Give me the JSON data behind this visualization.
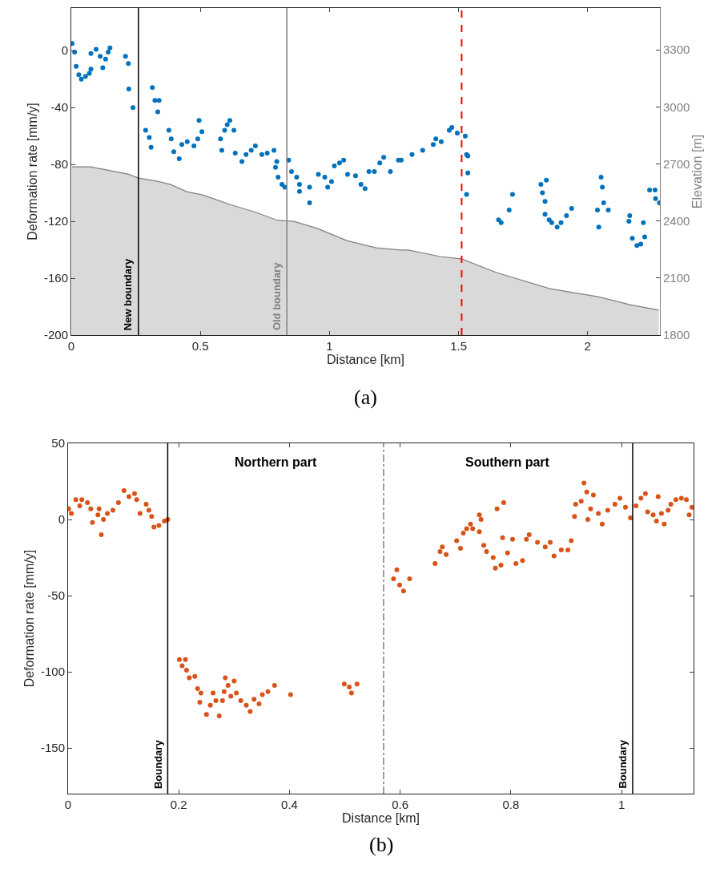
{
  "chart_data": [
    {
      "type": "scatter",
      "xlabel": "Distance [km]",
      "ylabel": "Deformation rate [mm/y]",
      "y2label": "Elevation [m]",
      "xlim": [
        0,
        2.28
      ],
      "xticks": [
        0,
        0.5,
        1,
        1.5,
        2
      ],
      "ylim": [
        -200,
        30
      ],
      "yticks": [
        -200,
        -160,
        -120,
        -80,
        -40,
        0
      ],
      "y2lim": [
        1800,
        3520
      ],
      "y2ticks": [
        1800,
        2100,
        2400,
        2700,
        3000,
        3300
      ],
      "series": [
        {
          "type": "area",
          "axis": "y2",
          "color": "#d9d9d9",
          "x": [
            0.003,
            0.074,
            0.22,
            0.26,
            0.335,
            0.385,
            0.447,
            0.509,
            0.614,
            0.716,
            0.8,
            0.862,
            0.955,
            1.067,
            1.181,
            1.274,
            1.305,
            1.429,
            1.513,
            1.647,
            1.854,
            2.04,
            2.164,
            2.276
          ],
          "values": [
            2685,
            2685,
            2647,
            2626,
            2609,
            2592,
            2554,
            2537,
            2487,
            2445,
            2403,
            2398,
            2360,
            2297,
            2259,
            2247,
            2247,
            2213,
            2200,
            2129,
            2044,
            2002,
            1960,
            1931
          ]
        },
        {
          "marker": "circle",
          "color": "#0072bd",
          "x": [
            0.003,
            0.013,
            0.019,
            0.029,
            0.039,
            0.055,
            0.07,
            0.076,
            0.076,
            0.096,
            0.112,
            0.122,
            0.133,
            0.143,
            0.15,
            0.21,
            0.221,
            0.223,
            0.239,
            0.288,
            0.302,
            0.309,
            0.314,
            0.324,
            0.335,
            0.34,
            0.378,
            0.387,
            0.397,
            0.418,
            0.428,
            0.449,
            0.475,
            0.49,
            0.495,
            0.506,
            0.578,
            0.583,
            0.594,
            0.604,
            0.614,
            0.63,
            0.635,
            0.661,
            0.677,
            0.697,
            0.713,
            0.738,
            0.759,
            0.785,
            0.796,
            0.791,
            0.801,
            0.816,
            0.827,
            0.842,
            0.853,
            0.873,
            0.884,
            0.884,
            0.923,
            0.923,
            0.957,
            0.982,
            0.993,
            1.008,
            1.019,
            1.039,
            1.055,
            1.07,
            1.101,
            1.122,
            1.138,
            1.153,
            1.174,
            1.195,
            1.21,
            1.236,
            1.267,
            1.278,
            1.32,
            1.361,
            1.402,
            1.412,
            1.433,
            1.464,
            1.474,
            1.495,
            1.526,
            1.531,
            1.536,
            1.536,
            1.531,
            1.655,
            1.665,
            1.696,
            1.709,
            1.819,
            1.825,
            1.835,
            1.84,
            1.835,
            1.851,
            1.861,
            1.882,
            1.897,
            1.918,
            1.938,
            2.038,
            2.043,
            2.052,
            2.057,
            2.062,
            2.08,
            2.16,
            2.163,
            2.173,
            2.191,
            2.206,
            2.216,
            2.221,
            2.24,
            2.261,
            2.263,
            2.278
          ],
          "values": [
            5,
            -1,
            -11,
            -17,
            -20,
            -18,
            -16,
            -13,
            -2,
            1,
            -4,
            -12,
            -6,
            -1,
            2,
            -4,
            -9,
            -27,
            -40,
            -56,
            -61,
            -68,
            -26,
            -35,
            -43,
            -35,
            -56,
            -62,
            -71,
            -76,
            -66,
            -64,
            -67,
            -62,
            -49,
            -57,
            -62,
            -70,
            -56,
            -52,
            -49,
            -56,
            -72,
            -78,
            -73,
            -70,
            -67,
            -73,
            -72,
            -70,
            -78,
            -82,
            -89,
            -94,
            -96,
            -77,
            -85,
            -89,
            -94,
            -99,
            -96,
            -107,
            -87,
            -89,
            -96,
            -92,
            -81,
            -79,
            -77,
            -87,
            -88,
            -94,
            -97,
            -85,
            -85,
            -79,
            -75,
            -85,
            -77,
            -77,
            -73,
            -70,
            -66,
            -62,
            -64,
            -56,
            -54,
            -58,
            -60,
            -73,
            -74,
            -86,
            -101,
            -119,
            -121,
            -112,
            -101,
            -94,
            -100,
            -106,
            -91,
            -115,
            -119,
            -121,
            -124,
            -121,
            -116,
            -111,
            -112,
            -124,
            -89,
            -96,
            -107,
            -112,
            -120,
            -116,
            -132,
            -137,
            -136,
            -121,
            -131,
            -98,
            -98,
            -104,
            -107
          ]
        }
      ],
      "ref_lines": [
        {
          "axis": "x",
          "value": 0.26,
          "label": "New boundary",
          "color": "#000000",
          "line_style": "solid"
        },
        {
          "axis": "x",
          "value": 0.835,
          "label": "Old boundary",
          "color": "#808080",
          "line_style": "solid"
        },
        {
          "axis": "x",
          "value": 1.512,
          "label": null,
          "color": "#ff0000",
          "line_style": "dashed"
        }
      ],
      "annotations": [
        "(a)"
      ]
    },
    {
      "type": "scatter",
      "xlabel": "Distance [km]",
      "ylabel": "Deformation rate [mm/y]",
      "xlim": [
        0,
        1.13
      ],
      "xticks": [
        0,
        0.2,
        0.4,
        0.6,
        0.8,
        1
      ],
      "ylim": [
        -180,
        50
      ],
      "yticks": [
        -150,
        -100,
        -50,
        0,
        50
      ],
      "series": [
        {
          "marker": "circle",
          "color": "#d95319",
          "x": [
            0.001,
            0.006,
            0.014,
            0.021,
            0.025,
            0.035,
            0.041,
            0.044,
            0.054,
            0.056,
            0.06,
            0.064,
            0.071,
            0.081,
            0.091,
            0.101,
            0.11,
            0.12,
            0.124,
            0.13,
            0.141,
            0.146,
            0.151,
            0.155,
            0.164,
            0.174,
            0.18,
            0.201,
            0.212,
            0.206,
            0.214,
            0.219,
            0.229,
            0.234,
            0.24,
            0.238,
            0.25,
            0.257,
            0.262,
            0.267,
            0.273,
            0.279,
            0.282,
            0.284,
            0.289,
            0.294,
            0.3,
            0.304,
            0.312,
            0.322,
            0.329,
            0.336,
            0.345,
            0.351,
            0.361,
            0.373,
            0.402,
            0.499,
            0.508,
            0.512,
            0.522,
            0.588,
            0.594,
            0.599,
            0.606,
            0.617,
            0.663,
            0.672,
            0.676,
            0.683,
            0.702,
            0.709,
            0.714,
            0.72,
            0.727,
            0.731,
            0.743,
            0.746,
            0.743,
            0.751,
            0.756,
            0.768,
            0.772,
            0.775,
            0.782,
            0.785,
            0.787,
            0.794,
            0.803,
            0.809,
            0.821,
            0.828,
            0.833,
            0.848,
            0.862,
            0.871,
            0.878,
            0.891,
            0.903,
            0.909,
            0.915,
            0.917,
            0.927,
            0.932,
            0.937,
            0.939,
            0.944,
            0.949,
            0.958,
            0.965,
            0.975,
            0.988,
            0.997,
            1.007,
            1.016,
            1.026,
            1.035,
            1.043,
            1.047,
            1.057,
            1.063,
            1.066,
            1.072,
            1.077,
            1.084,
            1.089,
            1.098,
            1.108,
            1.117,
            1.122,
            1.127
          ],
          "values": [
            7,
            4,
            13,
            9,
            13,
            11,
            7,
            -2,
            3,
            7,
            -10,
            0,
            4,
            6,
            11,
            19,
            15,
            17,
            13,
            4,
            10,
            6,
            2,
            -5,
            -4,
            -1,
            0,
            -92,
            -92,
            -96,
            -99,
            -104,
            -103,
            -111,
            -114,
            -120,
            -128,
            -122,
            -114,
            -119,
            -129,
            -119,
            -113,
            -104,
            -109,
            -116,
            -106,
            -114,
            -119,
            -122,
            -126,
            -118,
            -121,
            -115,
            -113,
            -109,
            -115,
            -108,
            -110,
            -114,
            -108,
            -39,
            -33,
            -43,
            -47,
            -39,
            -29,
            -21,
            -18,
            -23,
            -14,
            -19,
            -9,
            -6,
            -3,
            -6,
            3,
            0,
            -8,
            -17,
            -21,
            -25,
            -32,
            7,
            -30,
            -12,
            11,
            -22,
            -13,
            -29,
            -27,
            -13,
            -10,
            -15,
            -18,
            -15,
            -24,
            -20,
            -20,
            -14,
            2,
            10,
            12,
            24,
            18,
            0,
            7,
            16,
            4,
            -3,
            6,
            10,
            14,
            8,
            1,
            9,
            14,
            17,
            5,
            3,
            -1,
            15,
            4,
            -3,
            6,
            10,
            13,
            14,
            13,
            3,
            8
          ]
        }
      ],
      "ref_lines": [
        {
          "axis": "x",
          "value": 0.18,
          "label": "Boundary",
          "color": "#000000",
          "line_style": "solid"
        },
        {
          "axis": "x",
          "value": 0.57,
          "label": null,
          "color": "#808080",
          "line_style": "dashdot"
        },
        {
          "axis": "x",
          "value": 1.02,
          "label": "Boundary",
          "color": "#000000",
          "line_style": "solid"
        }
      ],
      "annotations": [
        "Northern part",
        "Southern part",
        "(b)"
      ]
    }
  ]
}
